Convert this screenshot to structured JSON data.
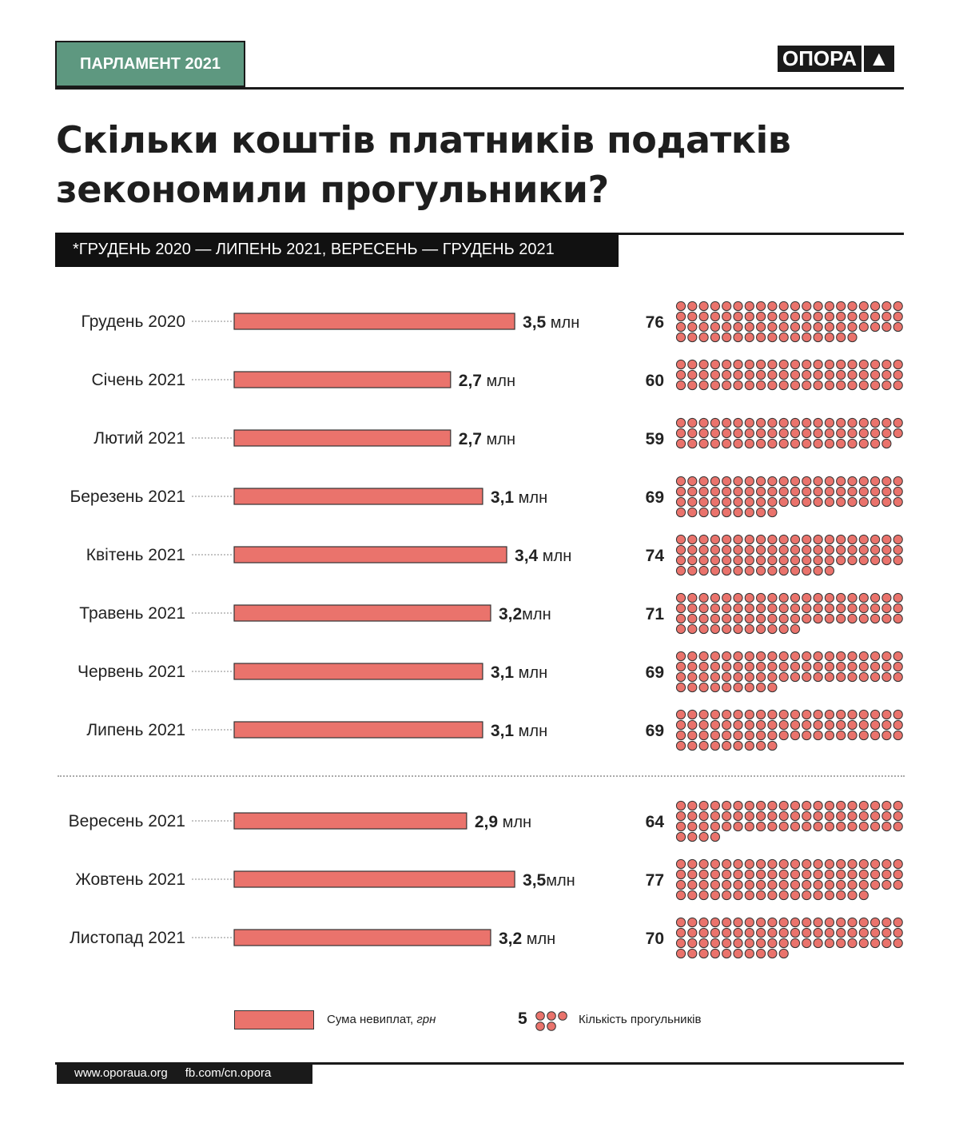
{
  "header": {
    "badge": "ПАРЛАМЕНТ 2021",
    "logo_text": "ОПОРА",
    "logo_symbol": "▲"
  },
  "title_line1": "Скільки коштів платників податків",
  "title_line2": "зекономили прогульники?",
  "period": "*ГРУДЕНЬ 2020 — ЛИПЕНЬ 2021, ВЕРЕСЕНЬ — ГРУДЕНЬ 2021",
  "chart_data": {
    "type": "bar",
    "title": "Скільки коштів платників податків зекономили прогульники?",
    "categories": [
      "Грудень 2020",
      "Січень 2021",
      "Лютий 2021",
      "Березень 2021",
      "Квітень 2021",
      "Травень 2021",
      "Червень 2021",
      "Липень 2021",
      "Вересень 2021",
      "Жовтень 2021",
      "Листопад 2021"
    ],
    "series": [
      {
        "name": "Сума невиплат, грн",
        "unit": "млн",
        "values": [
          3.5,
          2.7,
          2.7,
          3.1,
          3.4,
          3.2,
          3.1,
          3.1,
          2.9,
          3.5,
          3.2
        ],
        "labels": [
          "3,5 млн",
          "2,7 млн",
          "2,7 млн",
          "3,1 млн",
          "3,4 млн",
          "3,2млн",
          "3,1 млн",
          "3,1 млн",
          "2,9 млн",
          "3,5млн",
          "3,2 млн"
        ]
      },
      {
        "name": "Кількість прогульників",
        "values": [
          76,
          60,
          59,
          69,
          74,
          71,
          69,
          69,
          64,
          77,
          70
        ]
      }
    ],
    "group_break_after": 7,
    "colors": {
      "bar": "#ea736c",
      "dot": "#ea736c"
    }
  },
  "legend": {
    "bar_label": "Сума невиплат,",
    "bar_unit": "грн",
    "dots_number": "5",
    "dots_count": 5,
    "dots_label": "Кількість прогульників"
  },
  "footer": {
    "site": "www.oporaua.org",
    "fb": "fb.com/cn.opora"
  }
}
